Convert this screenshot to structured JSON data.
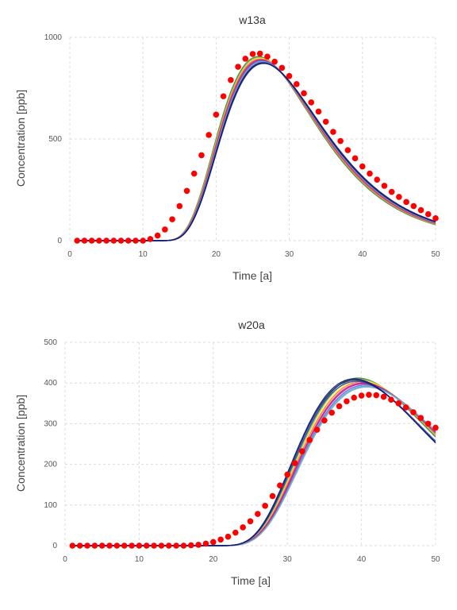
{
  "chart_data": [
    {
      "type": "line",
      "title": "w13a",
      "xlabel": "Time [a]",
      "ylabel": "Concentration [ppb]",
      "xlim": [
        0,
        50
      ],
      "ylim": [
        0,
        1000
      ],
      "xticks": [
        0,
        10,
        20,
        30,
        40,
        50
      ],
      "yticks": [
        0,
        500,
        1000
      ],
      "grid": true,
      "simulated_series": [
        {
          "peak_x": 25.8,
          "peak_y": 905,
          "color": "#2e7d32"
        },
        {
          "peak_x": 25.9,
          "peak_y": 900,
          "color": "#8bc34a"
        },
        {
          "peak_x": 26.0,
          "peak_y": 897,
          "color": "#ffeb3b"
        },
        {
          "peak_x": 26.0,
          "peak_y": 893,
          "color": "#ff7043"
        },
        {
          "peak_x": 26.1,
          "peak_y": 890,
          "color": "#e91e63"
        },
        {
          "peak_x": 26.2,
          "peak_y": 887,
          "color": "#9c27b0"
        },
        {
          "peak_x": 26.2,
          "peak_y": 884,
          "color": "#7e57c2"
        },
        {
          "peak_x": 26.3,
          "peak_y": 881,
          "color": "#29b6f6"
        },
        {
          "peak_x": 26.3,
          "peak_y": 878,
          "color": "#90a4ae"
        },
        {
          "peak_x": 26.4,
          "peak_y": 876,
          "color": "#3949ab"
        },
        {
          "peak_x": 26.4,
          "peak_y": 874,
          "color": "#1a237e"
        },
        {
          "peak_x": 26.5,
          "peak_y": 872,
          "color": "#0d1b6e"
        }
      ],
      "observed": {
        "color": "#ff0000",
        "x": [
          1,
          2,
          3,
          4,
          5,
          6,
          7,
          8,
          9,
          10,
          11,
          12,
          13,
          14,
          15,
          16,
          17,
          18,
          19,
          20,
          21,
          22,
          23,
          24,
          25,
          26,
          27,
          28,
          29,
          30,
          31,
          32,
          33,
          34,
          35,
          36,
          37,
          38,
          39,
          40,
          41,
          42,
          43,
          44,
          45,
          46,
          47,
          48,
          49,
          50
        ],
        "y": [
          0,
          0,
          0,
          0,
          0,
          0,
          0,
          0,
          0,
          0,
          8,
          25,
          55,
          105,
          170,
          245,
          330,
          420,
          520,
          620,
          710,
          790,
          855,
          895,
          918,
          920,
          905,
          880,
          850,
          810,
          770,
          725,
          680,
          635,
          585,
          535,
          490,
          445,
          405,
          365,
          330,
          300,
          270,
          240,
          215,
          190,
          170,
          150,
          130,
          110
        ]
      }
    },
    {
      "type": "line",
      "title": "w20a",
      "xlabel": "Time [a]",
      "ylabel": "Concentration [ppb]",
      "xlim": [
        0,
        50
      ],
      "ylim": [
        0,
        500
      ],
      "xticks": [
        0,
        10,
        20,
        30,
        40,
        50
      ],
      "yticks": [
        0,
        100,
        200,
        300,
        400,
        500
      ],
      "grid": true,
      "simulated_series": [
        {
          "peak_x": 39.5,
          "peak_y": 412,
          "color": "#2e7d32"
        },
        {
          "peak_x": 39.7,
          "peak_y": 409,
          "color": "#8bc34a"
        },
        {
          "peak_x": 39.9,
          "peak_y": 406,
          "color": "#ffeb3b"
        },
        {
          "peak_x": 40.0,
          "peak_y": 403,
          "color": "#ff7043"
        },
        {
          "peak_x": 40.2,
          "peak_y": 400,
          "color": "#e91e63"
        },
        {
          "peak_x": 40.3,
          "peak_y": 398,
          "color": "#9c27b0"
        },
        {
          "peak_x": 40.5,
          "peak_y": 395,
          "color": "#7e57c2"
        },
        {
          "peak_x": 40.6,
          "peak_y": 392,
          "color": "#29b6f6"
        },
        {
          "peak_x": 40.7,
          "peak_y": 390,
          "color": "#90a4ae"
        },
        {
          "peak_x": 39.3,
          "peak_y": 404,
          "color": "#3949ab"
        },
        {
          "peak_x": 39.1,
          "peak_y": 407,
          "color": "#1a237e"
        },
        {
          "peak_x": 39.0,
          "peak_y": 410,
          "color": "#0d1b6e"
        }
      ],
      "observed": {
        "color": "#ff0000",
        "x": [
          1,
          2,
          3,
          4,
          5,
          6,
          7,
          8,
          9,
          10,
          11,
          12,
          13,
          14,
          15,
          16,
          17,
          18,
          19,
          20,
          21,
          22,
          23,
          24,
          25,
          26,
          27,
          28,
          29,
          30,
          31,
          32,
          33,
          34,
          35,
          36,
          37,
          38,
          39,
          40,
          41,
          42,
          43,
          44,
          45,
          46,
          47,
          48,
          49,
          50
        ],
        "y": [
          0,
          0,
          0,
          0,
          0,
          0,
          0,
          0,
          0,
          0,
          0,
          0,
          0,
          0,
          0,
          0,
          1,
          2,
          5,
          9,
          15,
          22,
          32,
          45,
          60,
          78,
          98,
          122,
          148,
          175,
          203,
          232,
          260,
          285,
          308,
          327,
          343,
          355,
          364,
          369,
          371,
          370,
          366,
          359,
          350,
          340,
          328,
          314,
          300,
          290
        ]
      }
    }
  ]
}
